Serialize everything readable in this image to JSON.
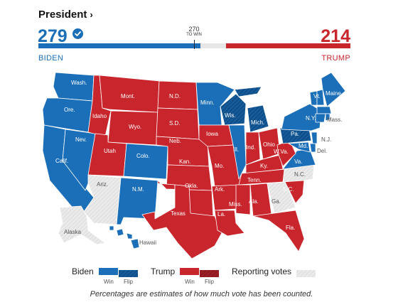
{
  "header": {
    "title": "President",
    "chevron": "›"
  },
  "candidates": {
    "biden": {
      "name": "BIDEN",
      "electoral_votes": "279",
      "color": "#1a6fb8",
      "winner": true
    },
    "trump": {
      "name": "TRUMP",
      "electoral_votes": "214",
      "color": "#c9252c"
    }
  },
  "to_win": {
    "number": "270",
    "label": "TO WIN"
  },
  "progress": {
    "total": 538,
    "biden": 279,
    "trump": 214
  },
  "map": {
    "colors": {
      "biden": "#1a6fb8",
      "biden_flip": "#0f4f8a",
      "trump": "#c9252c",
      "trump_flip": "#8e1b21",
      "reporting": "#dddddd"
    },
    "states": {
      "wa": "Wash.",
      "or": "Ore.",
      "ca": "Calif.",
      "nv": "Nev.",
      "id": "Idaho",
      "mt": "Mont.",
      "wy": "Wyo.",
      "ut": "Utah",
      "co": "Colo.",
      "az": "Ariz.",
      "nm": "N.M.",
      "nd": "N.D.",
      "sd": "S.D.",
      "ne": "Neb.",
      "ks": "Kan.",
      "ok": "Okla.",
      "tx": "Texas",
      "mn": "Minn.",
      "ia": "Iowa",
      "mo": "Mo.",
      "ark": "Ark.",
      "la": "La.",
      "wi": "Wis.",
      "il": "Ill.",
      "mi": "Mich.",
      "in": "Ind.",
      "oh": "Ohio",
      "ky": "Ky.",
      "tn": "Tenn.",
      "ms": "Miss.",
      "al": "Ala.",
      "ga": "Ga.",
      "fl": "Fla.",
      "sc": "S.C.",
      "nc": "N.C.",
      "va": "Va.",
      "wv": "W.Va.",
      "pa": "Pa.",
      "ny": "N.Y.",
      "vt": "Vt.",
      "me": "Maine",
      "mass": "Mass.",
      "nj": "N.J.",
      "md": "Md.",
      "de": "Del.",
      "ak": "Alaska",
      "hi": "Hawaii"
    }
  },
  "legend": {
    "biden": "Biden",
    "trump": "Trump",
    "reporting": "Reporting votes",
    "win": "Win",
    "flip": "Flip"
  },
  "footnote": "Percentages are estimates of how much vote has been counted."
}
